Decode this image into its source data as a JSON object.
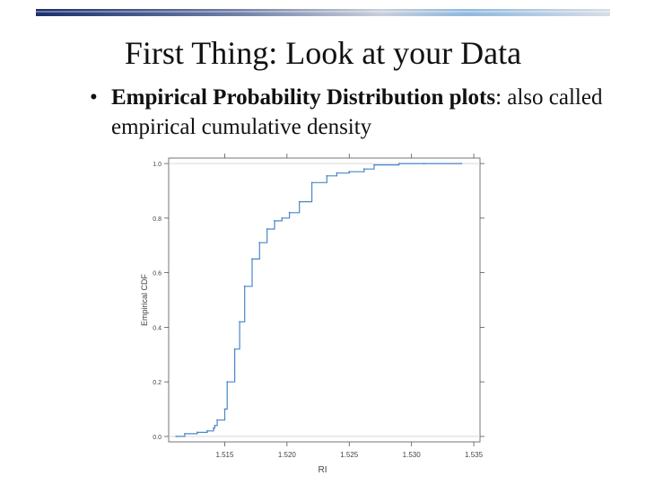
{
  "slide": {
    "title": "First Thing: Look at your Data",
    "bullet_marker": "•",
    "bullet_bold": "Empirical Probability Distribution plots",
    "bullet_colon": ":",
    "bullet_rest": " also called empirical cumulative density"
  },
  "chart_data": {
    "type": "line",
    "xlabel": "RI",
    "ylabel": "Empirical CDF",
    "xlim": [
      1.5105,
      1.5355
    ],
    "ylim": [
      -0.02,
      1.02
    ],
    "x_ticks": [
      1.515,
      1.52,
      1.525,
      1.53,
      1.535
    ],
    "x_tick_labels": [
      "1.515",
      "1.520",
      "1.525",
      "1.530",
      "1.535"
    ],
    "y_ticks": [
      0.0,
      0.2,
      0.4,
      0.6,
      0.8,
      1.0
    ],
    "y_tick_labels": [
      "0.0",
      "0.2",
      "0.4",
      "0.6",
      "0.8",
      "1.0"
    ],
    "reference_lines": [
      0.0,
      1.0
    ],
    "line_color": "#4a86c8",
    "series": [
      {
        "x": [
          1.5111,
          1.5118,
          1.5128,
          1.5136,
          1.5141,
          1.5142,
          1.5144,
          1.515,
          1.5152,
          1.5158,
          1.5162,
          1.5166,
          1.5172,
          1.5178,
          1.5184,
          1.519,
          1.5196,
          1.5202,
          1.521,
          1.522,
          1.5232,
          1.524,
          1.525,
          1.5262,
          1.527,
          1.529,
          1.531,
          1.534
        ],
        "y": [
          0.0,
          0.01,
          0.015,
          0.02,
          0.03,
          0.04,
          0.06,
          0.1,
          0.2,
          0.32,
          0.42,
          0.55,
          0.65,
          0.71,
          0.76,
          0.79,
          0.8,
          0.82,
          0.86,
          0.93,
          0.955,
          0.965,
          0.97,
          0.98,
          0.995,
          1.0,
          1.0,
          1.0
        ]
      }
    ]
  }
}
